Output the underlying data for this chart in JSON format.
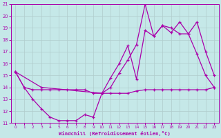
{
  "xlabel": "Windchill (Refroidissement éolien,°C)",
  "xlim": [
    -0.5,
    23.5
  ],
  "ylim": [
    11,
    21
  ],
  "xticks": [
    0,
    1,
    2,
    3,
    4,
    5,
    6,
    7,
    8,
    9,
    10,
    11,
    12,
    13,
    14,
    15,
    16,
    17,
    18,
    19,
    20,
    21,
    22,
    23
  ],
  "yticks": [
    11,
    12,
    13,
    14,
    15,
    16,
    17,
    18,
    19,
    20,
    21
  ],
  "background_color": "#c5e8e8",
  "grid_color": "#b0cccc",
  "line_color": "#aa00aa",
  "series": {
    "line1_flat": {
      "x": [
        0,
        1,
        2,
        3,
        4,
        5,
        6,
        7,
        8,
        9,
        10,
        11,
        12,
        13,
        14,
        15,
        16,
        17,
        18,
        19,
        20,
        21,
        22,
        23
      ],
      "y": [
        15.3,
        14.0,
        13.8,
        13.8,
        13.8,
        13.8,
        13.8,
        13.8,
        13.8,
        13.5,
        13.5,
        13.5,
        13.5,
        13.5,
        13.7,
        13.8,
        13.8,
        13.8,
        13.8,
        13.8,
        13.8,
        13.8,
        13.8,
        14.0
      ]
    },
    "line2_zigzag": {
      "x": [
        0,
        1,
        2,
        3,
        4,
        5,
        6,
        7,
        8,
        9,
        10,
        11,
        12,
        13,
        14,
        15,
        16,
        17,
        18,
        19,
        20,
        21,
        22,
        23
      ],
      "y": [
        15.3,
        14.0,
        13.0,
        12.2,
        11.5,
        11.2,
        11.2,
        11.2,
        11.7,
        11.5,
        13.5,
        14.8,
        16.0,
        17.5,
        14.7,
        18.8,
        18.3,
        19.2,
        19.0,
        18.5,
        18.5,
        16.8,
        15.0,
        14.0
      ]
    },
    "line3_diagonal": {
      "x": [
        0,
        3,
        10,
        11,
        12,
        13,
        14,
        15,
        16,
        17,
        18,
        19,
        20,
        21,
        22,
        23
      ],
      "y": [
        15.3,
        14.0,
        13.5,
        14.0,
        15.2,
        16.3,
        17.6,
        21.0,
        18.3,
        19.2,
        18.6,
        19.5,
        18.5,
        19.5,
        17.0,
        15.0
      ]
    }
  }
}
